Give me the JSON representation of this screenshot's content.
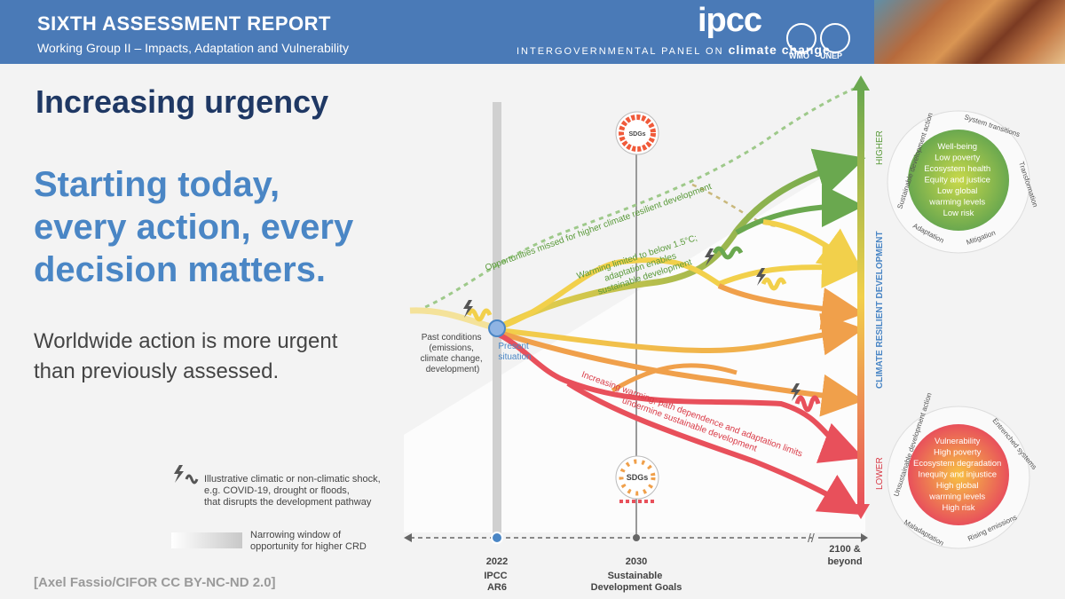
{
  "header": {
    "title": "SIXTH ASSESSMENT REPORT",
    "subtitle": "Working Group II – Impacts, Adaptation and Vulnerability",
    "logo": "ipcc",
    "org_name_prefix": "INTERGOVERNMENTAL PANEL ON",
    "org_name_suffix": "climate change",
    "partner_1": "WMO",
    "partner_2": "UNEP"
  },
  "slide": {
    "title": "Increasing urgency",
    "headline_lines": [
      "Starting today,",
      "every action, every",
      "decision matters."
    ],
    "body_lines": [
      "Worldwide action is more urgent",
      "than previously assessed."
    ],
    "credit": "[Axel Fassio/CIFOR CC BY-NC-ND 2.0]"
  },
  "legend": {
    "shock_lines": [
      "Illustrative climatic or non-climatic shock,",
      "e.g. COVID-19, drought or floods,",
      "that disrupts the development pathway"
    ],
    "window_lines": [
      "Narrowing window of",
      "opportunity for higher CRD"
    ]
  },
  "diagram": {
    "past_lines": [
      "Past conditions",
      "(emissions,",
      "climate change,",
      "development)"
    ],
    "present_lines": [
      "Present",
      "situation"
    ],
    "sdgs": "SDGs",
    "missed_label": "Opportunities missed for higher climate resilient development",
    "limited_lines": [
      "Warming limited to below 1.5°C;",
      "adaptation enables",
      "sustainable development"
    ],
    "increasing_lines": [
      "Increasing warming; path dependence and adaptation limits",
      "undermine sustainable development"
    ],
    "axis_label": "CLIMATE RESILIENT DEVELOPMENT",
    "higher": "HIGHER",
    "lower": "LOWER",
    "time_ticks": [
      {
        "year": "2022",
        "lines": [
          "IPCC",
          "AR6"
        ]
      },
      {
        "year": "2030",
        "lines": [
          "Sustainable",
          "Development Goals"
        ]
      },
      {
        "year": "2100 &",
        "lines": [
          "beyond"
        ]
      }
    ],
    "high_outcomes": [
      "Well-being",
      "Low poverty",
      "Ecosystem health",
      "Equity and justice",
      "Low global",
      "warming levels",
      "Low risk"
    ],
    "high_ring": [
      "Sustainable development action",
      "System transitions",
      "Transformation",
      "Mitigation",
      "Adaptation"
    ],
    "low_outcomes": [
      "Vulnerability",
      "High poverty",
      "Ecosystem degradation",
      "Inequity and injustice",
      "High global",
      "warming levels",
      "High risk"
    ],
    "low_ring": [
      "Unsustainable development action",
      "Entrenched systems",
      "Rising emissions",
      "Maladaptation"
    ]
  },
  "colors": {
    "header": "#4a7ab7",
    "title": "#1f3864",
    "accent": "#4a86c5",
    "green": "#6aa84f",
    "yellow": "#f2d04b",
    "orange": "#f0a04b",
    "red": "#e8505b"
  }
}
